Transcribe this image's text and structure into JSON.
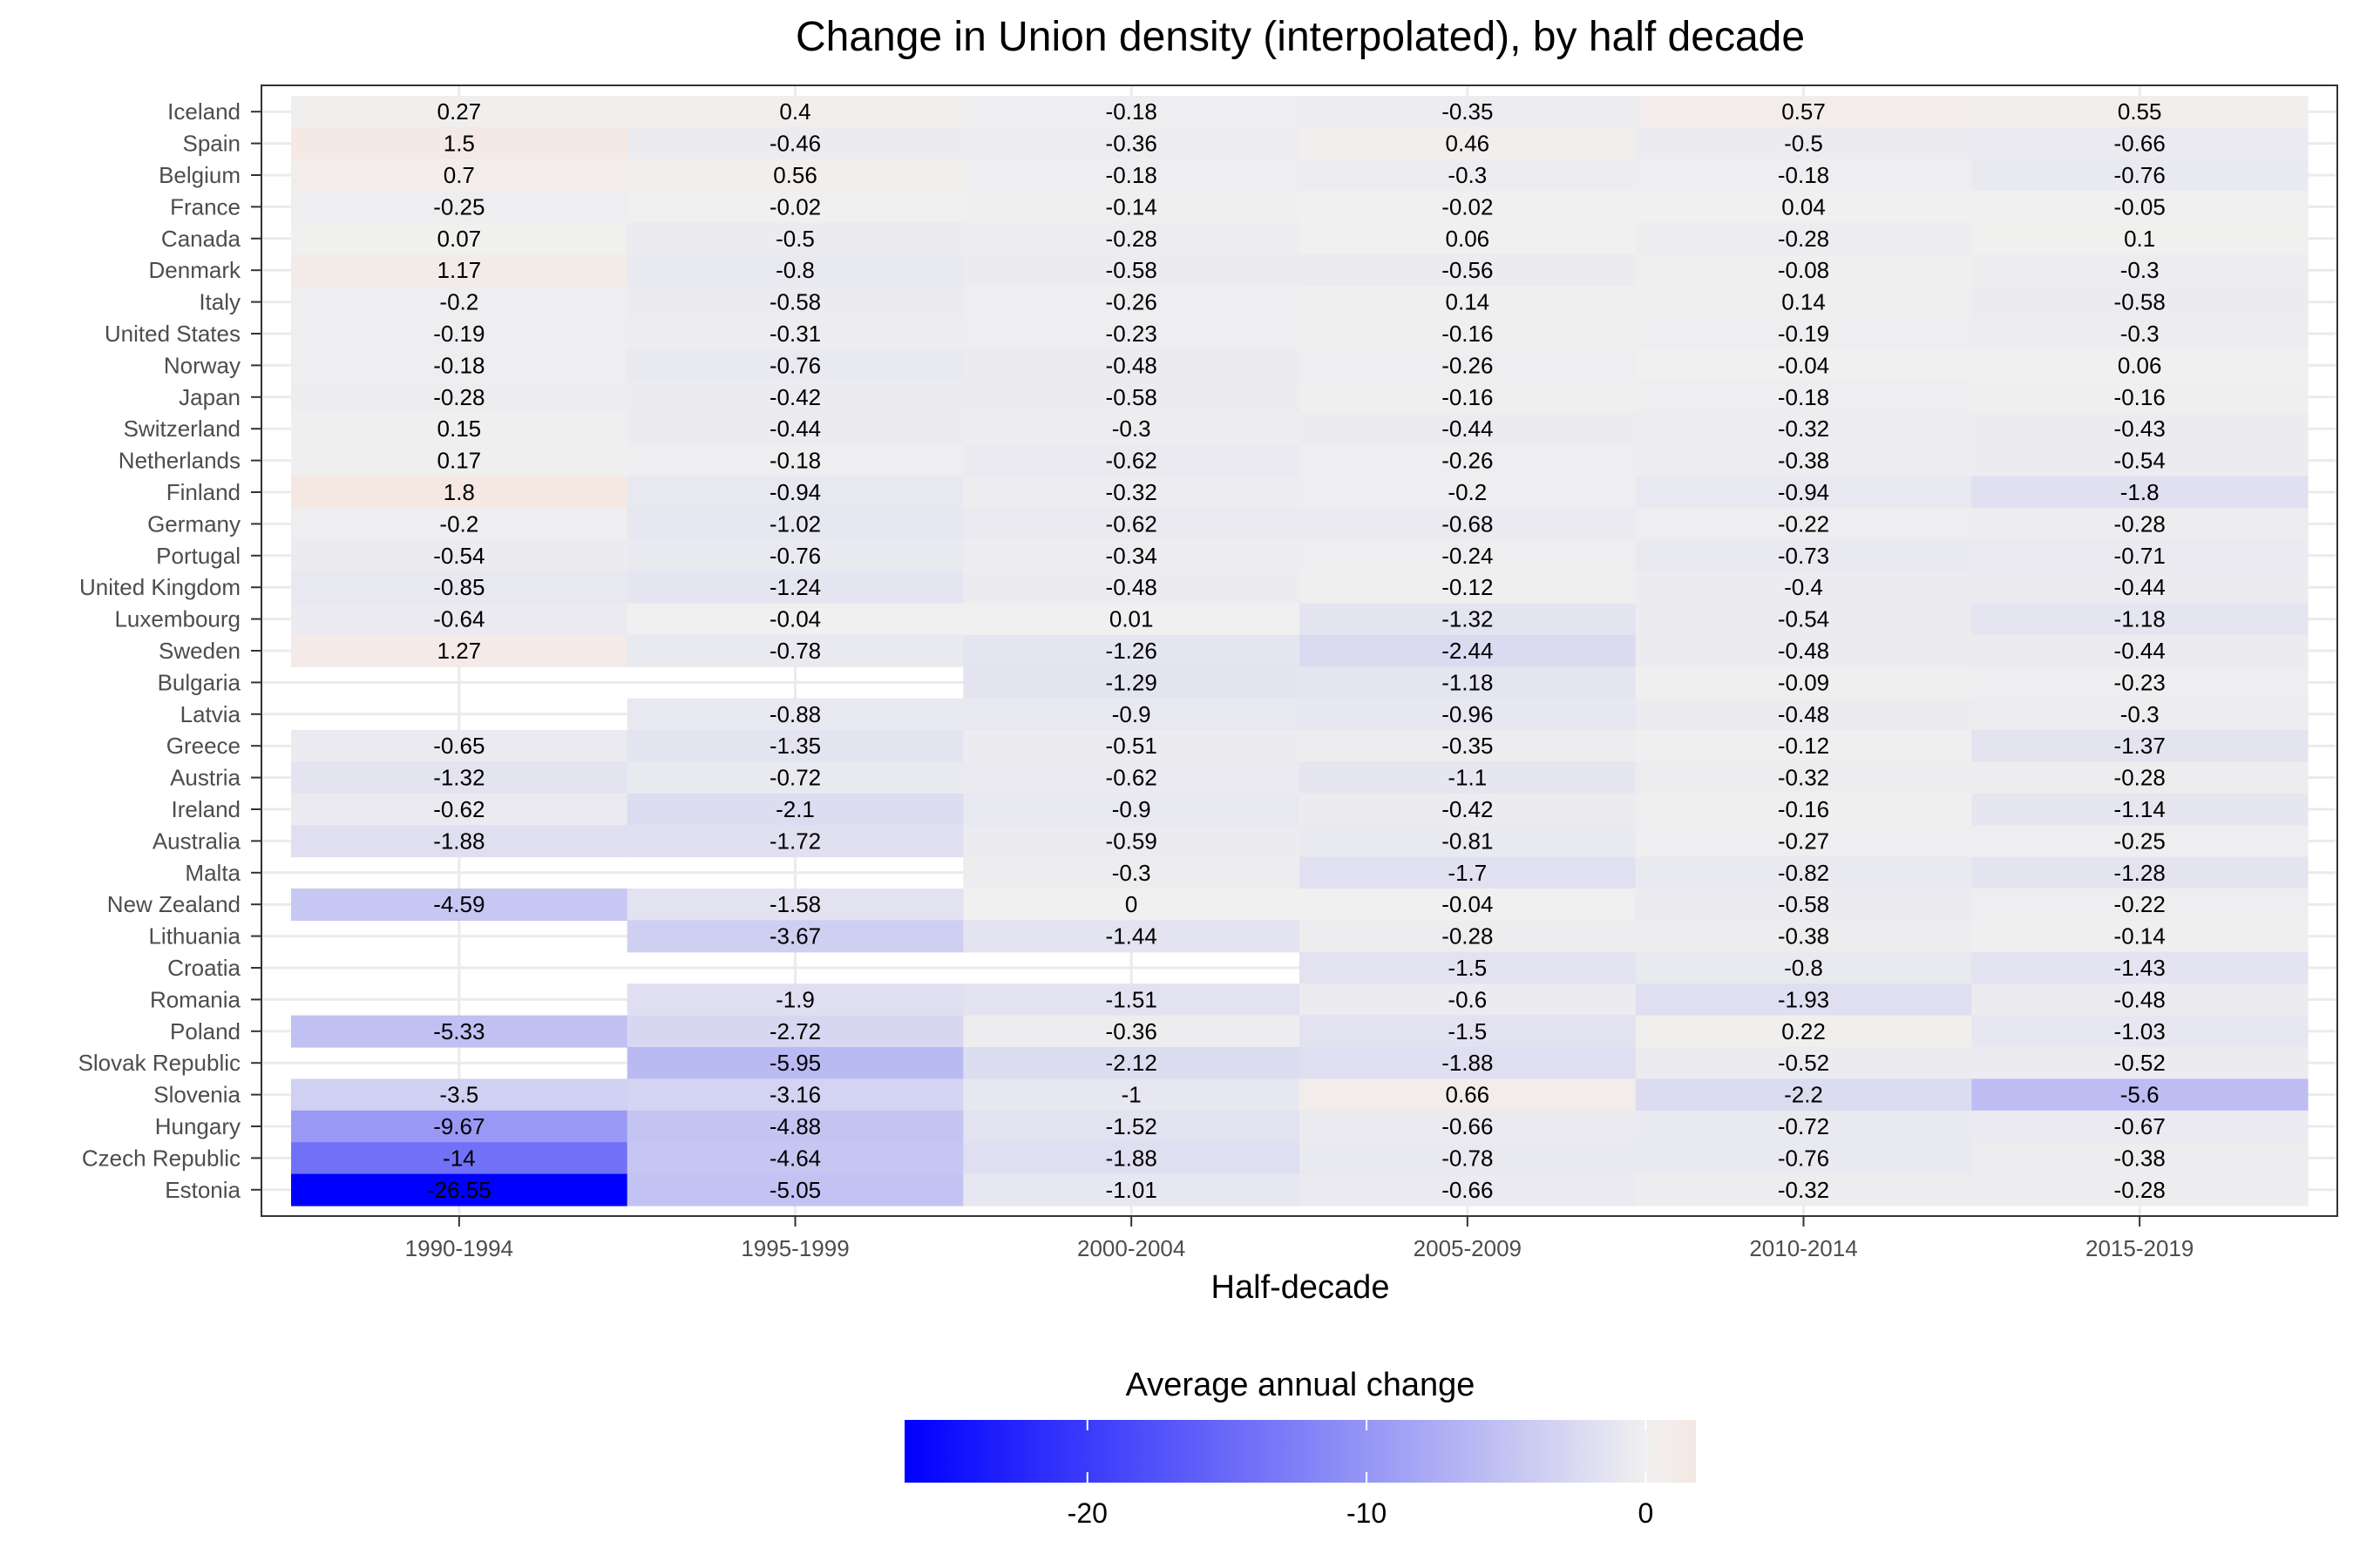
{
  "chart_data": {
    "type": "heatmap",
    "title": "Change in Union density (interpolated), by half decade",
    "xlabel": "Half-decade",
    "ylabel": "",
    "legend": {
      "title": "Average annual change",
      "position": "bottom",
      "ticks": [
        -20,
        -10,
        0
      ],
      "domain": [
        -26.55,
        1.8
      ],
      "colors": {
        "low": "#0000ff",
        "mid": "#f0f0f0",
        "high": "#f5e8e3"
      }
    },
    "grid": true,
    "x_categories": [
      "1990-1994",
      "1995-1999",
      "2000-2004",
      "2005-2009",
      "2010-2014",
      "2015-2019"
    ],
    "y_categories": [
      "Iceland",
      "Spain",
      "Belgium",
      "France",
      "Canada",
      "Denmark",
      "Italy",
      "United States",
      "Norway",
      "Japan",
      "Switzerland",
      "Netherlands",
      "Finland",
      "Germany",
      "Portugal",
      "United Kingdom",
      "Luxembourg",
      "Sweden",
      "Bulgaria",
      "Latvia",
      "Greece",
      "Austria",
      "Ireland",
      "Australia",
      "Malta",
      "New Zealand",
      "Lithuania",
      "Croatia",
      "Romania",
      "Poland",
      "Slovak Republic",
      "Slovenia",
      "Hungary",
      "Czech Republic",
      "Estonia"
    ],
    "values": [
      [
        0.27,
        0.4,
        -0.18,
        -0.35,
        0.57,
        0.55
      ],
      [
        1.5,
        -0.46,
        -0.36,
        0.46,
        -0.5,
        -0.66
      ],
      [
        0.7,
        0.56,
        -0.18,
        -0.3,
        -0.18,
        -0.76
      ],
      [
        -0.25,
        -0.02,
        -0.14,
        -0.02,
        0.04,
        -0.05
      ],
      [
        0.07,
        -0.5,
        -0.28,
        0.06,
        -0.28,
        0.1
      ],
      [
        1.17,
        -0.8,
        -0.58,
        -0.56,
        -0.08,
        -0.3
      ],
      [
        -0.2,
        -0.58,
        -0.26,
        0.14,
        0.14,
        -0.58
      ],
      [
        -0.19,
        -0.31,
        -0.23,
        -0.16,
        -0.19,
        -0.3
      ],
      [
        -0.18,
        -0.76,
        -0.48,
        -0.26,
        -0.04,
        0.06
      ],
      [
        -0.28,
        -0.42,
        -0.58,
        -0.16,
        -0.18,
        -0.16
      ],
      [
        0.15,
        -0.44,
        -0.3,
        -0.44,
        -0.32,
        -0.43
      ],
      [
        0.17,
        -0.18,
        -0.62,
        -0.26,
        -0.38,
        -0.54
      ],
      [
        1.8,
        -0.94,
        -0.32,
        -0.2,
        -0.94,
        -1.8
      ],
      [
        -0.2,
        -1.02,
        -0.62,
        -0.68,
        -0.22,
        -0.28
      ],
      [
        -0.54,
        -0.76,
        -0.34,
        -0.24,
        -0.73,
        -0.71
      ],
      [
        -0.85,
        -1.24,
        -0.48,
        -0.12,
        -0.4,
        -0.44
      ],
      [
        -0.64,
        -0.04,
        0.01,
        -1.32,
        -0.54,
        -1.18
      ],
      [
        1.27,
        -0.78,
        -1.26,
        -2.44,
        -0.48,
        -0.44
      ],
      [
        null,
        null,
        -1.29,
        -1.18,
        -0.09,
        -0.23
      ],
      [
        null,
        -0.88,
        -0.9,
        -0.96,
        -0.48,
        -0.3
      ],
      [
        -0.65,
        -1.35,
        -0.51,
        -0.35,
        -0.12,
        -1.37
      ],
      [
        -1.32,
        -0.72,
        -0.62,
        -1.1,
        -0.32,
        -0.28
      ],
      [
        -0.62,
        -2.1,
        -0.9,
        -0.42,
        -0.16,
        -1.14
      ],
      [
        -1.88,
        -1.72,
        -0.59,
        -0.81,
        -0.27,
        -0.25
      ],
      [
        null,
        null,
        -0.3,
        -1.7,
        -0.82,
        -1.28
      ],
      [
        -4.59,
        -1.58,
        0,
        -0.04,
        -0.58,
        -0.22
      ],
      [
        null,
        -3.67,
        -1.44,
        -0.28,
        -0.38,
        -0.14
      ],
      [
        null,
        null,
        null,
        -1.5,
        -0.8,
        -1.43
      ],
      [
        null,
        -1.9,
        -1.51,
        -0.6,
        -1.93,
        -0.48
      ],
      [
        -5.33,
        -2.72,
        -0.36,
        -1.5,
        0.22,
        -1.03
      ],
      [
        null,
        -5.95,
        -2.12,
        -1.88,
        -0.52,
        -0.52
      ],
      [
        -3.5,
        -3.16,
        -1,
        0.66,
        -2.2,
        -5.6
      ],
      [
        -9.67,
        -4.88,
        -1.52,
        -0.66,
        -0.72,
        -0.67
      ],
      [
        -14,
        -4.64,
        -1.88,
        -0.78,
        -0.76,
        -0.38
      ],
      [
        -26.55,
        -5.05,
        -1.01,
        -0.66,
        -0.32,
        -0.28
      ]
    ]
  }
}
